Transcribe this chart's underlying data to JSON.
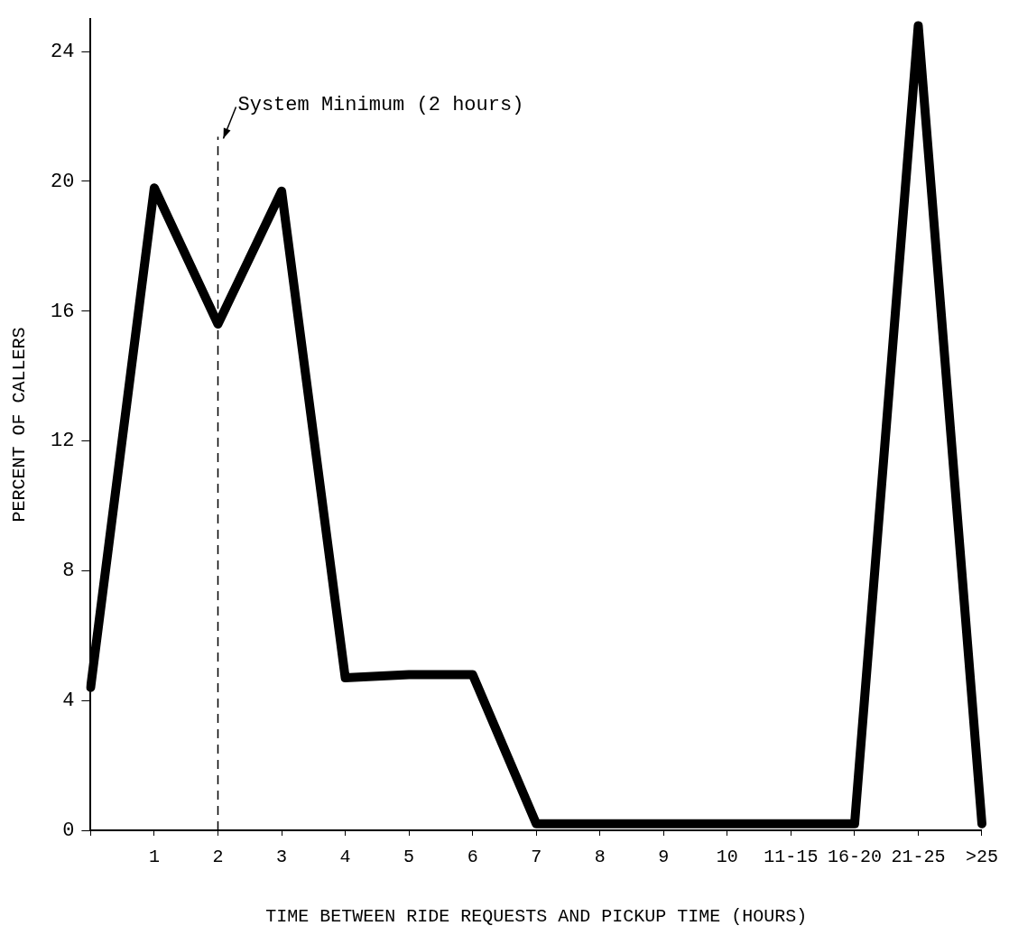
{
  "chart_data": {
    "type": "line",
    "xlabel": "TIME BETWEEN RIDE REQUESTS AND PICKUP TIME (HOURS)",
    "ylabel": "PERCENT OF CALLERS",
    "categories": [
      null,
      "1",
      "2",
      "3",
      "4",
      "5",
      "6",
      "7",
      "8",
      "9",
      "10",
      "11-15",
      "16-20",
      "21-25",
      ">25"
    ],
    "series": [
      {
        "color": "#000000",
        "values": [
          4.4,
          19.8,
          15.6,
          19.7,
          4.7,
          4.8,
          4.8,
          0.2,
          0.2,
          0.2,
          0.2,
          0.2,
          0.2,
          24.8,
          0.2
        ]
      }
    ],
    "ylim": [
      0,
      25
    ],
    "yticks": [
      0,
      4,
      8,
      12,
      16,
      20,
      24
    ],
    "grid": false,
    "legend": false,
    "marker": "none",
    "line_style": "solid",
    "ref_lines": [
      {
        "axis": "x",
        "value": "2",
        "label": "System Minimum (2 hours)",
        "line_style": "dashed",
        "color": "#000000"
      }
    ]
  }
}
